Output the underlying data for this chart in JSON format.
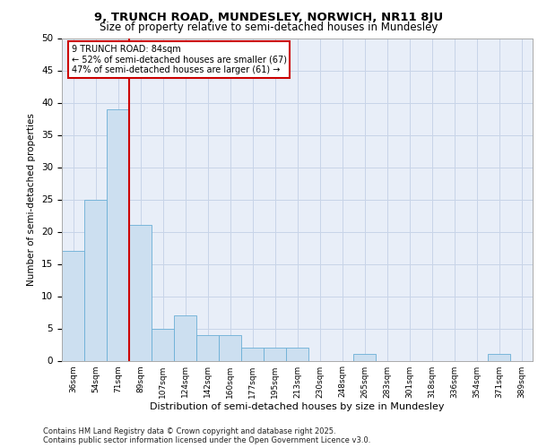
{
  "title1": "9, TRUNCH ROAD, MUNDESLEY, NORWICH, NR11 8JU",
  "title2": "Size of property relative to semi-detached houses in Mundesley",
  "xlabel": "Distribution of semi-detached houses by size in Mundesley",
  "ylabel": "Number of semi-detached properties",
  "categories": [
    "36sqm",
    "54sqm",
    "71sqm",
    "89sqm",
    "107sqm",
    "124sqm",
    "142sqm",
    "160sqm",
    "177sqm",
    "195sqm",
    "213sqm",
    "230sqm",
    "248sqm",
    "265sqm",
    "283sqm",
    "301sqm",
    "318sqm",
    "336sqm",
    "354sqm",
    "371sqm",
    "389sqm"
  ],
  "values": [
    17,
    25,
    39,
    21,
    5,
    7,
    4,
    4,
    2,
    2,
    2,
    0,
    0,
    1,
    0,
    0,
    0,
    0,
    0,
    1,
    0
  ],
  "bar_color": "#ccdff0",
  "bar_edge_color": "#6aafd6",
  "grid_color": "#c8d4e8",
  "background_color": "#e8eef8",
  "vline_color": "#cc0000",
  "annotation_text": "9 TRUNCH ROAD: 84sqm\n← 52% of semi-detached houses are smaller (67)\n47% of semi-detached houses are larger (61) →",
  "annotation_box_color": "#ffffff",
  "annotation_box_edge": "#cc0000",
  "footer": "Contains HM Land Registry data © Crown copyright and database right 2025.\nContains public sector information licensed under the Open Government Licence v3.0.",
  "ylim": [
    0,
    50
  ],
  "yticks": [
    0,
    5,
    10,
    15,
    20,
    25,
    30,
    35,
    40,
    45,
    50
  ],
  "title1_fontsize": 9.5,
  "title2_fontsize": 8.5,
  "ylabel_fontsize": 7.5,
  "xlabel_fontsize": 8.0,
  "tick_fontsize": 7.5,
  "xtick_fontsize": 6.5,
  "footer_fontsize": 6.0,
  "ann_fontsize": 7.0
}
